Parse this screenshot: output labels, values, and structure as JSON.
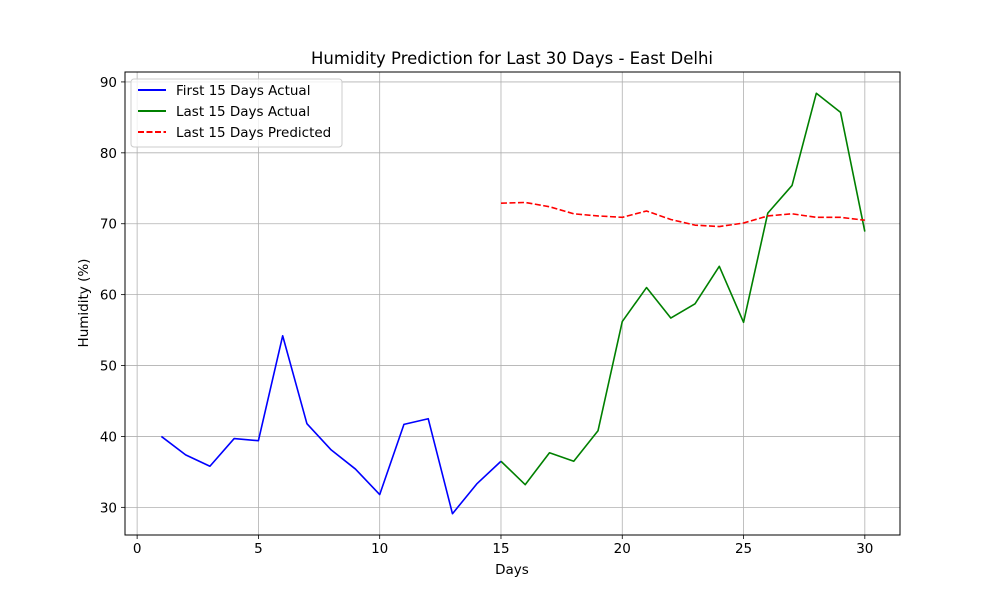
{
  "chart_data": {
    "type": "line",
    "title": "Humidity Prediction for Last 30 Days - East Delhi",
    "xlabel": "Days",
    "ylabel": "Humidity (%)",
    "xlim": [
      -0.5,
      31.45
    ],
    "ylim": [
      26.1,
      91.4
    ],
    "xticks": [
      0,
      5,
      10,
      15,
      20,
      25,
      30
    ],
    "yticks": [
      30,
      40,
      50,
      60,
      70,
      80,
      90
    ],
    "grid": true,
    "legend_position": "top-left",
    "series": [
      {
        "name": "First 15 Days Actual",
        "color": "#0000ff",
        "style": "solid",
        "x": [
          1,
          2,
          3,
          4,
          5,
          6,
          7,
          8,
          9,
          10,
          11,
          12,
          13,
          14,
          15
        ],
        "y": [
          40.0,
          37.4,
          35.8,
          39.7,
          39.4,
          54.2,
          41.8,
          38.1,
          35.4,
          31.8,
          41.7,
          42.5,
          29.1,
          33.3,
          36.5
        ]
      },
      {
        "name": "Last 15 Days Actual",
        "color": "#008000",
        "style": "solid",
        "x": [
          15,
          16,
          17,
          18,
          19,
          20,
          21,
          22,
          23,
          24,
          25,
          26,
          27,
          28,
          29,
          30
        ],
        "y": [
          36.5,
          33.2,
          37.7,
          36.5,
          40.8,
          56.2,
          61.0,
          56.7,
          58.7,
          64.0,
          56.1,
          71.5,
          75.4,
          88.4,
          85.7,
          68.9
        ]
      },
      {
        "name": "Last 15 Days Predicted",
        "color": "#ff0000",
        "style": "dashed",
        "x": [
          15,
          16,
          17,
          18,
          19,
          20,
          21,
          22,
          23,
          24,
          25,
          26,
          27,
          28,
          29,
          30
        ],
        "y": [
          72.9,
          73.0,
          72.4,
          71.4,
          71.1,
          70.9,
          71.8,
          70.6,
          69.8,
          69.6,
          70.1,
          71.1,
          71.4,
          70.9,
          70.9,
          70.5
        ]
      }
    ]
  }
}
